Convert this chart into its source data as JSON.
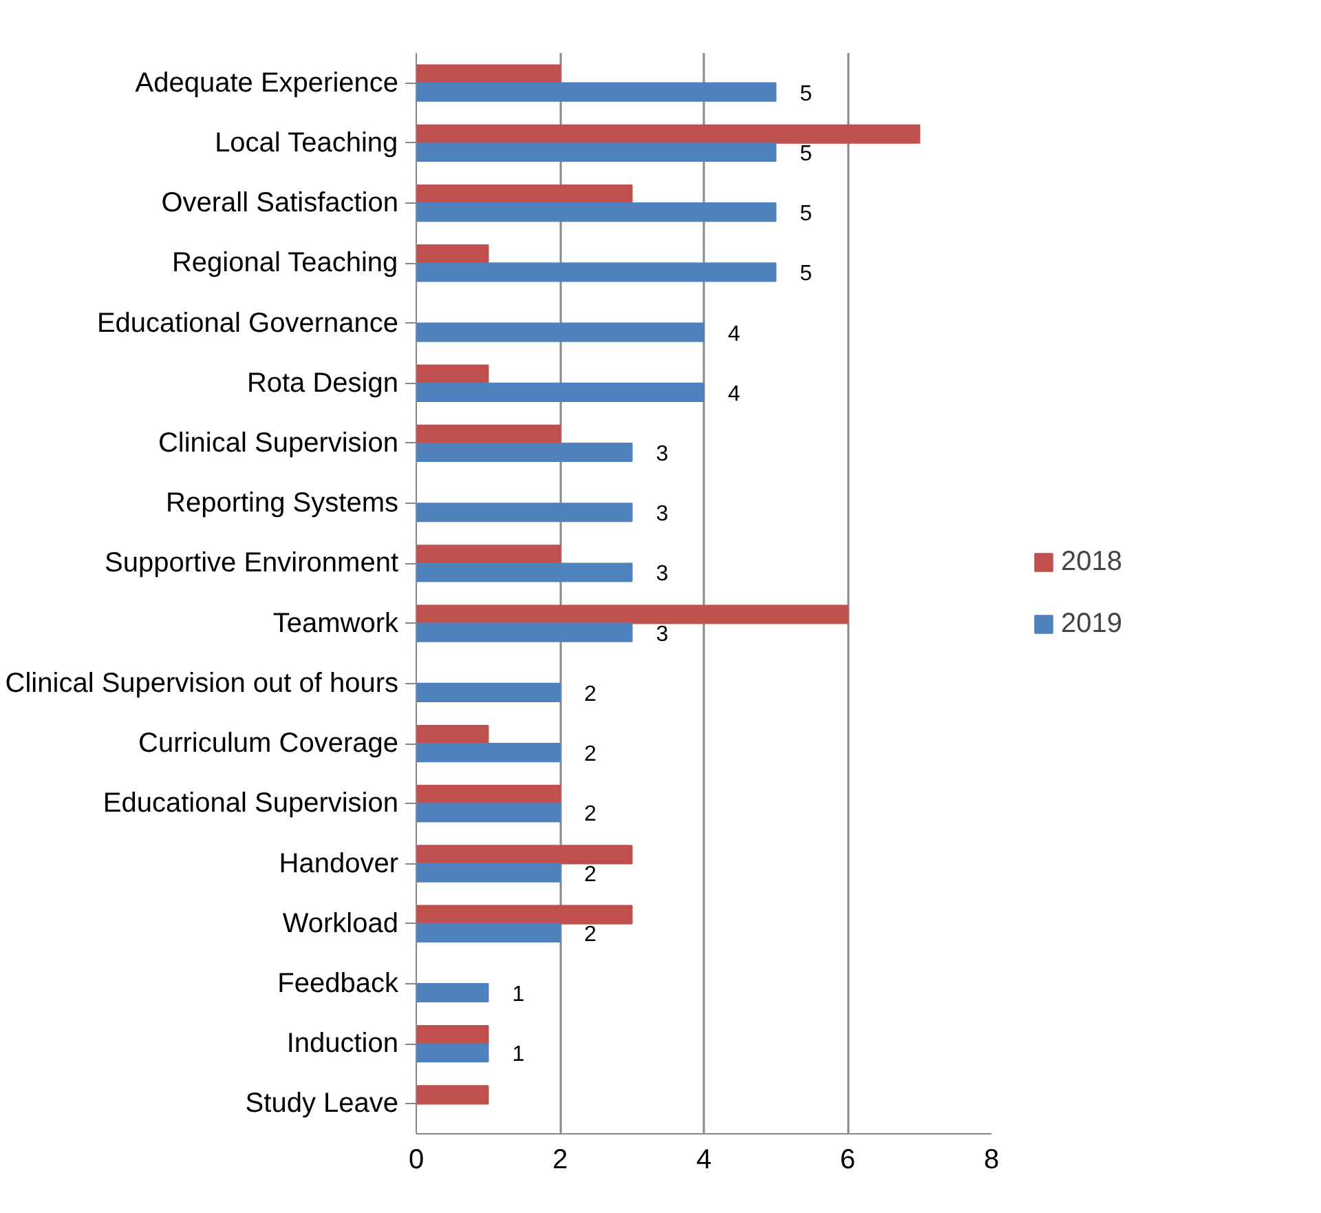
{
  "chart_data": {
    "type": "bar",
    "orientation": "horizontal",
    "categories": [
      "Adequate Experience",
      "Local Teaching",
      "Overall Satisfaction",
      "Regional Teaching",
      "Educational Governance",
      "Rota Design",
      "Clinical Supervision",
      "Reporting Systems",
      "Supportive Environment",
      "Teamwork",
      "Clinical Supervision out of hours",
      "Curriculum Coverage",
      "Educational Supervision",
      "Handover",
      "Workload",
      "Feedback",
      "Induction",
      "Study Leave"
    ],
    "series": [
      {
        "name": "2018",
        "color": "#c0504d",
        "values": [
          2,
          7,
          3,
          1,
          null,
          1,
          2,
          null,
          2,
          6,
          null,
          1,
          2,
          3,
          3,
          null,
          1,
          1
        ]
      },
      {
        "name": "2019",
        "color": "#4f81bd",
        "values": [
          5,
          5,
          5,
          5,
          4,
          4,
          3,
          3,
          3,
          3,
          2,
          2,
          2,
          2,
          2,
          1,
          1,
          null
        ],
        "value_labels": [
          "5",
          "5",
          "5",
          "5",
          "4",
          "4",
          "3",
          "3",
          "3",
          "3",
          "2",
          "2",
          "2",
          "2",
          "2",
          "1",
          "1",
          null
        ]
      }
    ],
    "xlim": [
      0,
      8
    ],
    "xticks": [
      0,
      2,
      4,
      6,
      8
    ],
    "grid": "x",
    "legend": "right"
  }
}
